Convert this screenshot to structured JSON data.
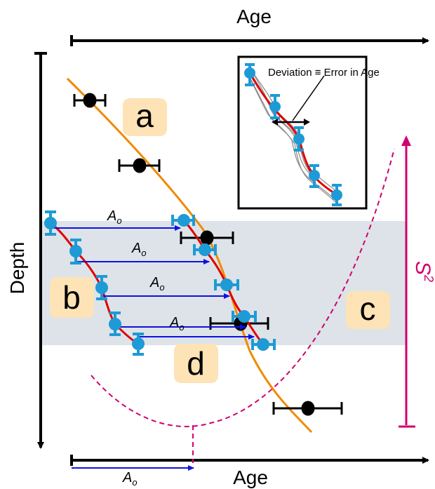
{
  "labels": {
    "top_axis": "Age",
    "bottom_axis": "Age",
    "left_axis": "Depth",
    "region_a": "a",
    "region_b": "b",
    "region_c": "c",
    "region_d": "d",
    "offset_symbol": "A",
    "offset_subscript": "o",
    "inset_caption": "Deviation ≡ Error in Age",
    "variance_symbol": "S",
    "variance_superscript": "2"
  },
  "colors": {
    "age_model_curve": "#f08a00",
    "correlated_curve": "#e00000",
    "point_blue": "#1e9ad6",
    "point_black": "#000000",
    "offset_arrow": "#1010e0",
    "variance_magenta": "#d1006f",
    "shaded_band": "#dde3e8",
    "label_box": "#fde3b5",
    "inset_lines": "#8a8a8a"
  }
}
